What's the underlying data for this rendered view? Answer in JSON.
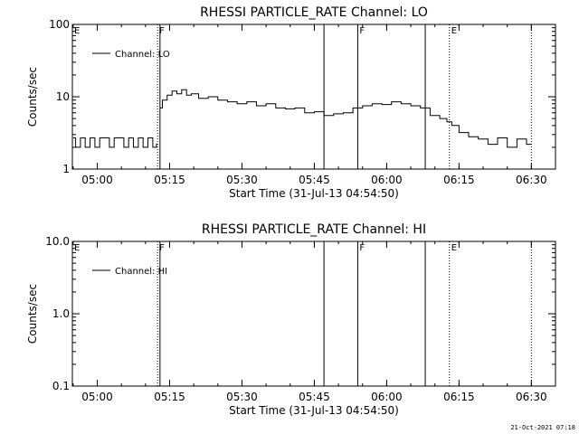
{
  "footer": {
    "date": "21-Oct-2021 07:18"
  },
  "chart_data": [
    {
      "type": "line",
      "title": "RHESSI PARTICLE_RATE Channel: LO",
      "xlabel": "Start Time (31-Jul-13 04:54:50)",
      "ylabel": "Counts/sec",
      "yscale": "log",
      "xlim": [
        "04:54:50",
        "06:35:00"
      ],
      "ylim": [
        1,
        100
      ],
      "xticks": [
        "05:00",
        "05:15",
        "05:30",
        "05:45",
        "06:00",
        "06:15",
        "06:30"
      ],
      "yticks": [
        "1",
        "10",
        "100"
      ],
      "legend": {
        "position": "top-left",
        "label": "Channel: LO"
      },
      "markers": [
        {
          "label": "E",
          "time": "04:54:50",
          "style": "dotted"
        },
        {
          "label": "F",
          "time": "05:12:30",
          "style": "dotted"
        },
        {
          "label": "",
          "time": "05:13:00",
          "style": "solid"
        },
        {
          "label": "",
          "time": "05:47:00",
          "style": "solid"
        },
        {
          "label": "F",
          "time": "05:54:00",
          "style": "solid"
        },
        {
          "label": "",
          "time": "06:08:00",
          "style": "solid"
        },
        {
          "label": "E",
          "time": "06:13:00",
          "style": "dotted"
        },
        {
          "label": "",
          "time": "06:30:00",
          "style": "dotted"
        }
      ],
      "series": [
        {
          "segments": [
            {
              "x": [
                "04:55:00",
                "04:56:00",
                "04:57:00",
                "04:58:00",
                "04:59:00",
                "05:00:00",
                "05:01:00",
                "05:02:00",
                "05:03:00",
                "05:04:00",
                "05:05:00",
                "05:06:00",
                "05:07:00",
                "05:08:00",
                "05:09:00",
                "05:10:00",
                "05:11:00",
                "05:12:00",
                "05:12:30"
              ],
              "y": [
                2.7,
                2.0,
                2.7,
                2.0,
                2.7,
                2.0,
                2.7,
                2.7,
                2.0,
                2.7,
                2.7,
                2.0,
                2.7,
                2.0,
                2.7,
                2.0,
                2.7,
                2.0,
                2.2
              ]
            },
            {
              "x": [
                "05:13:00",
                "05:14:00",
                "05:15:00",
                "05:16:00",
                "05:17:00",
                "05:18:00",
                "05:19:00",
                "05:20:00",
                "05:22:00",
                "05:24:00",
                "05:26:00",
                "05:28:00",
                "05:30:00",
                "05:32:00",
                "05:34:00",
                "05:36:00",
                "05:38:00",
                "05:40:00",
                "05:42:00",
                "05:44:00",
                "05:46:00",
                "05:48:00",
                "05:50:00",
                "05:52:00",
                "05:54:00",
                "05:56:00",
                "05:58:00",
                "06:00:00",
                "06:02:00",
                "06:04:00",
                "06:06:00",
                "06:08:00",
                "06:10:00",
                "06:12:00",
                "06:13:00",
                "06:14:00",
                "06:16:00",
                "06:18:00",
                "06:20:00",
                "06:22:00",
                "06:24:00",
                "06:26:00",
                "06:28:00",
                "06:30:00"
              ],
              "y": [
                7.0,
                9.0,
                10.5,
                12.0,
                11.0,
                12.5,
                10.5,
                11.0,
                9.5,
                10.0,
                9.0,
                8.5,
                8.0,
                8.5,
                7.5,
                8.0,
                7.0,
                6.8,
                7.0,
                6.0,
                6.2,
                5.5,
                5.8,
                6.0,
                7.0,
                7.5,
                8.0,
                7.8,
                8.5,
                8.0,
                7.5,
                7.0,
                5.5,
                5.0,
                4.5,
                4.0,
                3.2,
                2.8,
                2.6,
                2.2,
                2.7,
                2.0,
                2.6,
                2.2
              ]
            }
          ]
        }
      ]
    },
    {
      "type": "line",
      "title": "RHESSI PARTICLE_RATE Channel: HI",
      "xlabel": "Start Time (31-Jul-13 04:54:50)",
      "ylabel": "Counts/sec",
      "yscale": "log",
      "xlim": [
        "04:54:50",
        "06:35:00"
      ],
      "ylim": [
        0.1,
        10
      ],
      "xticks": [
        "05:00",
        "05:15",
        "05:30",
        "05:45",
        "06:00",
        "06:15",
        "06:30"
      ],
      "yticks": [
        "0.1",
        "1.0",
        "10.0"
      ],
      "legend": {
        "position": "top-left",
        "label": "Channel: HI"
      },
      "markers": [
        {
          "label": "E",
          "time": "04:54:50",
          "style": "dotted"
        },
        {
          "label": "F",
          "time": "05:12:30",
          "style": "dotted"
        },
        {
          "label": "",
          "time": "05:13:00",
          "style": "solid"
        },
        {
          "label": "",
          "time": "05:47:00",
          "style": "solid"
        },
        {
          "label": "F",
          "time": "05:54:00",
          "style": "solid"
        },
        {
          "label": "",
          "time": "06:08:00",
          "style": "solid"
        },
        {
          "label": "E",
          "time": "06:13:00",
          "style": "dotted"
        },
        {
          "label": "",
          "time": "06:30:00",
          "style": "dotted"
        }
      ],
      "series": [
        {
          "segments": []
        }
      ]
    }
  ]
}
